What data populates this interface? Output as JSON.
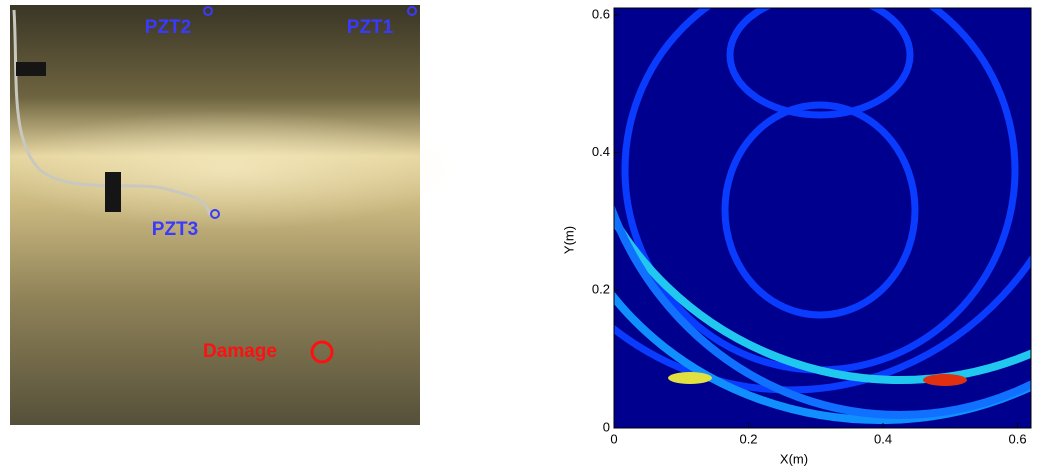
{
  "photo": {
    "labels": [
      "PZT2",
      "PZT1",
      "PZT3",
      "Damage"
    ]
  },
  "chart_data": {
    "type": "heatmap",
    "x_label": "X(m)",
    "y_label": "Y(m)",
    "xlim": [
      0,
      0.62
    ],
    "ylim": [
      0,
      0.61
    ],
    "xticks": [
      0,
      0.2,
      0.4,
      0.6
    ],
    "yticks": [
      0,
      0.2,
      0.4,
      0.6
    ]
  }
}
